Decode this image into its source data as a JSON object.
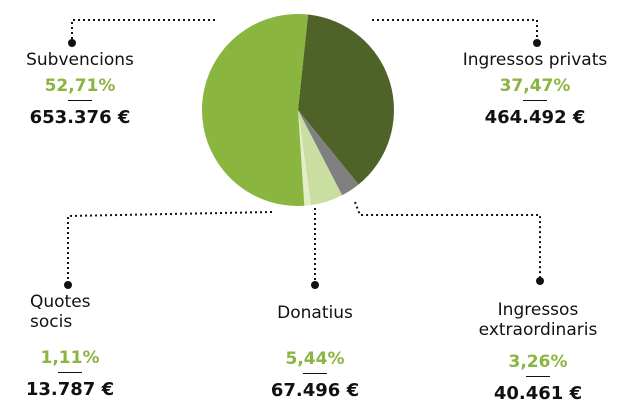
{
  "chart_data": {
    "type": "pie",
    "categories": [
      "Subvencions",
      "Ingressos privats",
      "Quotes socis",
      "Donatius",
      "Ingressos extraordinaris"
    ],
    "values": [
      52.71,
      37.47,
      1.11,
      5.44,
      3.26
    ],
    "value_labels": [
      "52,71%",
      "37,47%",
      "1,11%",
      "5,44%",
      "3,26%"
    ],
    "amount_labels": [
      "653.376 €",
      "464.492 €",
      "13.787 €",
      "67.496 €",
      "40.461 €"
    ],
    "colors": [
      "#8ab53f",
      "#4f6228",
      "#e3edc8",
      "#c9dea0",
      "#808080"
    ],
    "clockwise_order": [
      1,
      4,
      3,
      2,
      0
    ]
  }
}
